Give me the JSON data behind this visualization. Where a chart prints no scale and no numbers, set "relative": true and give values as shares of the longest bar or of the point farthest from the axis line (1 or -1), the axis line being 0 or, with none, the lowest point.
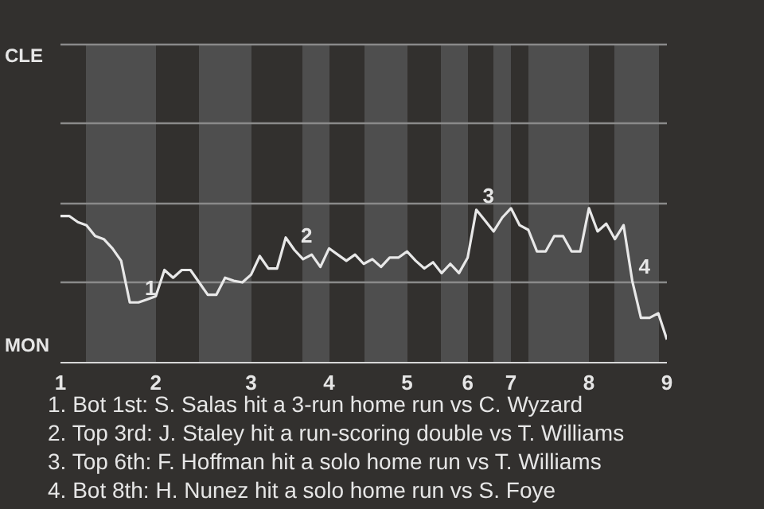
{
  "chart_data": {
    "type": "line",
    "relative": true,
    "categories": [
      "1",
      null,
      null,
      null,
      null,
      null,
      null,
      null,
      null,
      null,
      null,
      "2",
      null,
      null,
      null,
      null,
      null,
      null,
      null,
      null,
      null,
      null,
      "3",
      null,
      null,
      null,
      null,
      null,
      null,
      null,
      null,
      "4",
      null,
      null,
      null,
      null,
      null,
      null,
      null,
      null,
      "5",
      null,
      null,
      null,
      null,
      null,
      null,
      "6",
      null,
      null,
      null,
      null,
      "7",
      null,
      null,
      null,
      null,
      null,
      null,
      null,
      null,
      "8",
      null,
      null,
      null,
      null,
      null,
      null,
      null,
      null,
      "9"
    ],
    "series": [
      {
        "color": "#e8e8e8",
        "values": [
          0.95,
          0.95,
          0.91,
          0.89,
          0.82,
          0.8,
          0.74,
          0.66,
          0.39,
          0.39,
          0.41,
          0.43,
          0.6,
          0.55,
          0.6,
          0.6,
          0.52,
          0.44,
          0.44,
          0.55,
          0.53,
          0.52,
          0.57,
          0.69,
          0.61,
          0.61,
          0.81,
          0.73,
          0.67,
          0.7,
          0.62,
          0.74,
          0.7,
          0.66,
          0.7,
          0.64,
          0.67,
          0.62,
          0.68,
          0.68,
          0.72,
          0.66,
          0.61,
          0.65,
          0.58,
          0.64,
          0.58,
          0.68,
          0.99,
          0.92,
          0.85,
          0.94,
          1,
          0.89,
          0.86,
          0.72,
          0.72,
          0.82,
          0.82,
          0.72,
          0.72,
          1,
          0.85,
          0.9,
          0.8,
          0.89,
          0.53,
          0.29,
          0.29,
          0.32,
          0.15
        ]
      }
    ],
    "ref_lines": [
      {
        "axis": "y",
        "value": 0.52,
        "color": "#8a8a8a"
      },
      {
        "axis": "y",
        "value": 1.03,
        "color": "#8a8a8a"
      },
      {
        "axis": "y",
        "value": 1.55,
        "color": "#8a8a8a"
      },
      {
        "axis": "y",
        "value": 2.06,
        "color": "#8a8a8a"
      }
    ],
    "annotations": [
      {
        "text": "1",
        "y": 0.39
      },
      {
        "text": "2",
        "y": 0.73
      },
      {
        "text": "3",
        "y": 0.99
      },
      {
        "text": "4",
        "y": 0.53
      },
      "CLE",
      "MON",
      "1. Bot 1st: S. Salas hit a 3-run home run vs C. Wyzard",
      "2. Top 3rd: J. Staley hit a run-scoring double vs T. Williams",
      "3. Top 6th: F. Hoffman hit a solo home run vs T. Williams",
      "4. Bot 8th: H. Nunez hit a solo home run vs S. Foye"
    ]
  }
}
